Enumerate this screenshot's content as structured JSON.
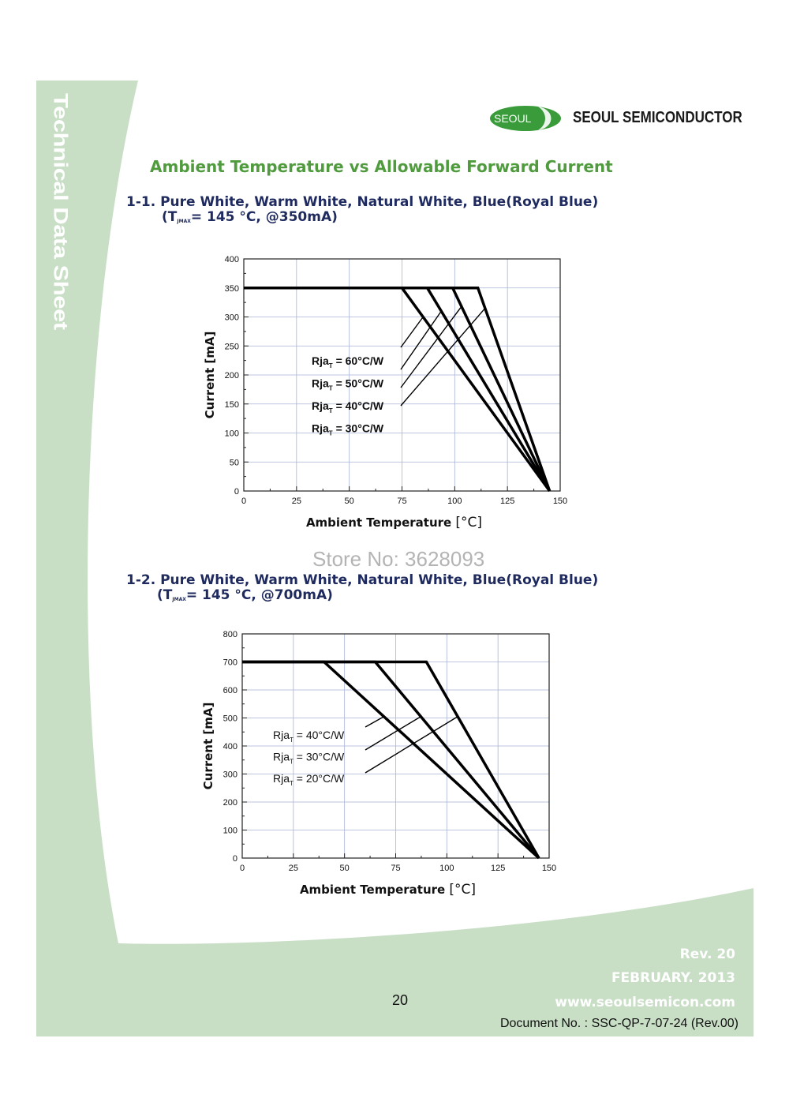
{
  "sidebar": {
    "title": "Technical Data Sheet"
  },
  "brand": {
    "badge": "SEOUL",
    "name": "SEOUL SEMICONDUCTOR",
    "green": "#3a9b3a",
    "panel": "#c8dfc6"
  },
  "main_title": "Ambient Temperature vs Allowable Forward Current",
  "sections": [
    {
      "line1": "1-1. Pure White, Warm White, Natural White, Blue(Royal Blue)",
      "line2_open": "(T",
      "line2_sub": "JMAX",
      "line2_rest": "= 145 °C, @350mA)"
    },
    {
      "line1": "1-2. Pure White, Warm White, Natural White, Blue(Royal Blue)",
      "line2_open": "(T",
      "line2_sub": "JMAX",
      "line2_rest": "= 145 °C, @700mA)"
    }
  ],
  "watermark": "Store No: 3628093",
  "footer": {
    "rev": "Rev. 20",
    "date": "FEBRUARY. 2013",
    "website": "www.seoulsemicon.com",
    "page_number": "20",
    "document_no": "Document No. : SSC-QP-7-07-24 (Rev.00)"
  },
  "chart_data": [
    {
      "type": "line",
      "title": "",
      "xlabel": "Ambient Temperature",
      "xunit": "[°C]",
      "ylabel": "Current [mA]",
      "xlim": [
        0,
        150
      ],
      "ylim": [
        0,
        400
      ],
      "x_ticks": [
        0,
        25,
        50,
        75,
        100,
        125,
        150
      ],
      "y_ticks": [
        0,
        50,
        100,
        150,
        200,
        250,
        300,
        350,
        400
      ],
      "grid": true,
      "series": [
        {
          "name": "Rja = 60°C/W",
          "label": "Rja",
          "sub": "T",
          "value": "= 60°C/W",
          "x": [
            0,
            75,
            145
          ],
          "y": [
            350,
            350,
            0
          ]
        },
        {
          "name": "Rja = 50°C/W",
          "label": "Rja",
          "sub": "T",
          "value": "= 50°C/W",
          "x": [
            0,
            87,
            145
          ],
          "y": [
            350,
            350,
            0
          ]
        },
        {
          "name": "Rja = 40°C/W",
          "label": "Rja",
          "sub": "T",
          "value": "= 40°C/W",
          "x": [
            0,
            99,
            145
          ],
          "y": [
            350,
            350,
            0
          ]
        },
        {
          "name": "Rja = 30°C/W",
          "label": "Rja",
          "sub": "T",
          "value": "= 30°C/W",
          "x": [
            0,
            111,
            145
          ],
          "y": [
            350,
            350,
            0
          ]
        }
      ]
    },
    {
      "type": "line",
      "title": "",
      "xlabel": "Ambient Temperature",
      "xunit": "[°C]",
      "ylabel": "Current [mA]",
      "xlim": [
        0,
        150
      ],
      "ylim": [
        0,
        800
      ],
      "x_ticks": [
        0,
        25,
        50,
        75,
        100,
        125,
        150
      ],
      "y_ticks": [
        0,
        100,
        200,
        300,
        400,
        500,
        600,
        700,
        800
      ],
      "grid": true,
      "series": [
        {
          "name": "Rja = 40°C/W",
          "label": "Rja",
          "sub": "T",
          "value": "= 40°C/W",
          "x": [
            0,
            40,
            145
          ],
          "y": [
            700,
            700,
            0
          ]
        },
        {
          "name": "Rja = 30°C/W",
          "label": "Rja",
          "sub": "T",
          "value": "= 30°C/W",
          "x": [
            0,
            65,
            145
          ],
          "y": [
            700,
            700,
            0
          ]
        },
        {
          "name": "Rja = 20°C/W",
          "label": "Rja",
          "sub": "T",
          "value": "= 20°C/W",
          "x": [
            0,
            90,
            145
          ],
          "y": [
            700,
            700,
            0
          ]
        }
      ]
    }
  ]
}
